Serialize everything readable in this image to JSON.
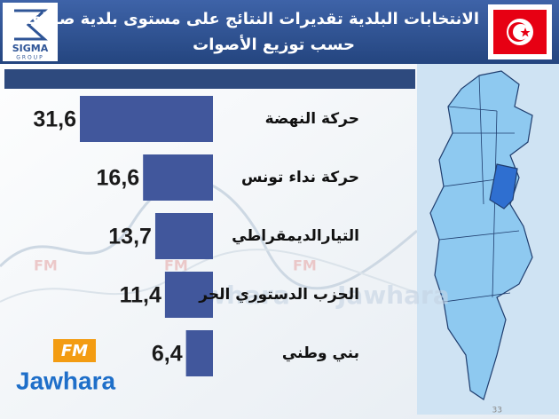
{
  "chart_data": {
    "type": "bar",
    "orientation": "horizontal",
    "title_lines": [
      "الانتخابات البلدية تقديرات النتائج على مستوى بلدية صفاقس",
      "حسب توزيع الأصوات"
    ],
    "categories": [
      "حركة النهضة",
      "حركة نداء تونس",
      "التيارالديمقراطي",
      "الحزب الدستوري الحر",
      "بني وطني"
    ],
    "values": [
      31.6,
      16.6,
      13.7,
      11.4,
      6.4
    ],
    "value_labels": [
      "31,6",
      "16,6",
      "13,7",
      "11,4",
      "6,4"
    ],
    "color": "#41579c"
  },
  "branding": {
    "logo": "SIGMA",
    "logo_sub": "GROUP",
    "watermark_fm": "FM",
    "watermark_name": "Jawhara"
  },
  "page_number": "33"
}
